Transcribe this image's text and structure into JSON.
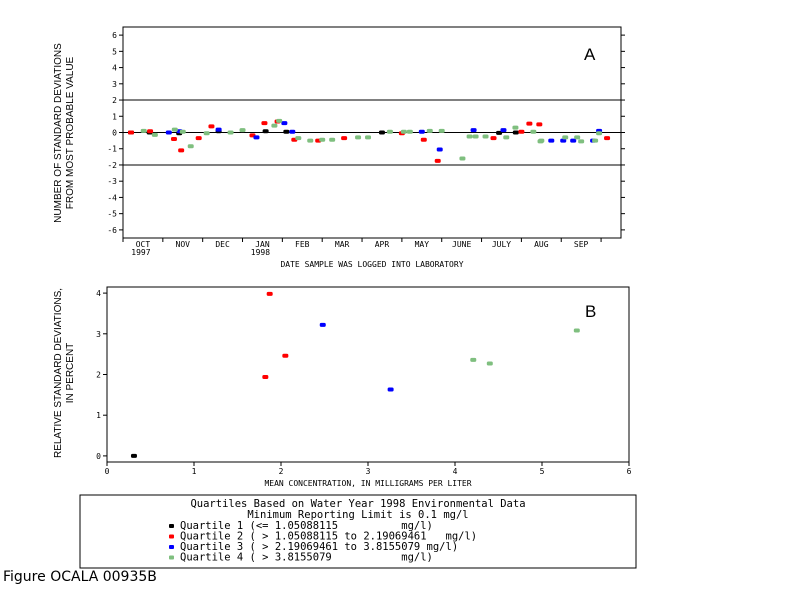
{
  "caption": "Figure OCALA 00935B",
  "colors": {
    "q1": "#000000",
    "q2": "#ff0000",
    "q3": "#0000ff",
    "q4": "#7fbf7f"
  },
  "legend": {
    "title1": "Quartiles Based on Water Year 1998 Environmental Data",
    "title2": "Minimum Reporting Limit is 0.1 mg/l",
    "items": [
      {
        "key": "q1",
        "label": "Quartile 1 (<= 1.05088115          mg/l)"
      },
      {
        "key": "q2",
        "label": "Quartile 2 ( > 1.05088115 to 2.19069461   mg/l)"
      },
      {
        "key": "q3",
        "label": "Quartile 3 ( > 2.19069461 to 3.8155079 mg/l)"
      },
      {
        "key": "q4",
        "label": "Quartile 4 ( > 3.8155079           mg/l)"
      }
    ]
  },
  "chart_data": [
    {
      "type": "scatter",
      "panel": "A",
      "ylabel": [
        "NUMBER OF STANDARD DEVIATIONS",
        "FROM MOST PROBABLE VALUE"
      ],
      "xlabel": "DATE SAMPLE WAS LOGGED INTO LABORATORY",
      "ylim": [
        -6.5,
        6.5
      ],
      "xlim": [
        -0.5,
        12.0
      ],
      "yticks": [
        -6,
        -5,
        -4,
        -3,
        -2,
        -1,
        0,
        1,
        2,
        3,
        4,
        5,
        6
      ],
      "yticklabels": [
        "-6",
        "-5",
        "-4",
        "-3",
        "-2",
        "-1",
        "0",
        "1",
        "2",
        "3",
        "4",
        "5",
        "6"
      ],
      "reference_lines": [
        2,
        0,
        -2
      ],
      "months": [
        {
          "label": "OCT",
          "year": "1997"
        },
        {
          "label": "NOV",
          "year": ""
        },
        {
          "label": "DEC",
          "year": ""
        },
        {
          "label": "JAN",
          "year": "1998"
        },
        {
          "label": "FEB",
          "year": ""
        },
        {
          "label": "MAR",
          "year": ""
        },
        {
          "label": "APR",
          "year": ""
        },
        {
          "label": "MAY",
          "year": ""
        },
        {
          "label": "JUNE",
          "year": ""
        },
        {
          "label": "JULY",
          "year": ""
        },
        {
          "label": "AUG",
          "year": ""
        },
        {
          "label": "SEP",
          "year": ""
        }
      ],
      "series": [
        {
          "key": "q1",
          "points": [
            [
              -0.3,
              0.0
            ],
            [
              0.17,
              0.0
            ],
            [
              0.91,
              -0.05
            ],
            [
              1.9,
              0.08
            ],
            [
              3.08,
              0.08
            ],
            [
              3.6,
              0.05
            ],
            [
              6.0,
              0.0
            ],
            [
              8.94,
              -0.02
            ],
            [
              9.36,
              0.0
            ]
          ]
        },
        {
          "key": "q2",
          "points": [
            [
              -0.3,
              0.0
            ],
            [
              0.18,
              0.08
            ],
            [
              0.78,
              -0.4
            ],
            [
              0.96,
              -1.1
            ],
            [
              1.4,
              -0.35
            ],
            [
              1.72,
              0.38
            ],
            [
              2.75,
              -0.18
            ],
            [
              3.05,
              0.58
            ],
            [
              3.38,
              0.68
            ],
            [
              3.8,
              -0.45
            ],
            [
              4.4,
              -0.5
            ],
            [
              5.05,
              -0.35
            ],
            [
              6.5,
              -0.05
            ],
            [
              7.05,
              -0.45
            ],
            [
              7.4,
              -1.75
            ],
            [
              8.8,
              -0.35
            ],
            [
              9.5,
              0.05
            ],
            [
              9.7,
              0.55
            ],
            [
              9.95,
              0.5
            ],
            [
              11.65,
              -0.35
            ]
          ]
        },
        {
          "key": "q3",
          "points": [
            [
              0.65,
              0.0
            ],
            [
              0.92,
              0.08
            ],
            [
              1.9,
              0.18
            ],
            [
              2.85,
              -0.3
            ],
            [
              3.55,
              0.58
            ],
            [
              3.75,
              0.05
            ],
            [
              7.0,
              0.05
            ],
            [
              7.45,
              -1.05
            ],
            [
              8.3,
              0.15
            ],
            [
              9.05,
              0.15
            ],
            [
              10.25,
              -0.5
            ],
            [
              10.55,
              -0.5
            ],
            [
              10.8,
              -0.5
            ],
            [
              11.3,
              -0.5
            ],
            [
              11.45,
              0.1
            ]
          ]
        },
        {
          "key": "q4",
          "points": [
            [
              0.02,
              0.1
            ],
            [
              0.3,
              -0.15
            ],
            [
              0.8,
              0.18
            ],
            [
              1.0,
              0.05
            ],
            [
              1.2,
              -0.85
            ],
            [
              1.6,
              -0.05
            ],
            [
              2.2,
              0.0
            ],
            [
              2.5,
              0.15
            ],
            [
              3.3,
              0.42
            ],
            [
              3.42,
              0.72
            ],
            [
              3.9,
              -0.35
            ],
            [
              4.2,
              -0.5
            ],
            [
              4.5,
              -0.45
            ],
            [
              4.75,
              -0.45
            ],
            [
              5.4,
              -0.3
            ],
            [
              5.65,
              -0.3
            ],
            [
              6.2,
              0.05
            ],
            [
              6.55,
              0.05
            ],
            [
              6.7,
              0.05
            ],
            [
              7.2,
              0.1
            ],
            [
              7.5,
              0.1
            ],
            [
              8.02,
              -1.6
            ],
            [
              8.2,
              -0.25
            ],
            [
              8.35,
              -0.25
            ],
            [
              8.6,
              -0.25
            ],
            [
              9.12,
              -0.3
            ],
            [
              9.35,
              0.3
            ],
            [
              9.8,
              0.05
            ],
            [
              9.98,
              -0.55
            ],
            [
              10.0,
              -0.5
            ],
            [
              10.6,
              -0.3
            ],
            [
              10.9,
              -0.3
            ],
            [
              11.0,
              -0.55
            ],
            [
              11.35,
              -0.5
            ],
            [
              11.45,
              -0.05
            ]
          ]
        }
      ]
    },
    {
      "type": "scatter",
      "panel": "B",
      "ylabel": [
        "RELATIVE STANDARD DEVIATIONS,",
        "IN PERCENT"
      ],
      "xlabel": "MEAN CONCENTRATION, IN MILLIGRAMS PER LITER",
      "xlim": [
        0,
        6
      ],
      "ylim": [
        -0.15,
        4.15
      ],
      "xticks": [
        0,
        1,
        2,
        3,
        4,
        5,
        6
      ],
      "xticklabels": [
        "0",
        "1",
        "2",
        "3",
        "4",
        "5",
        "6"
      ],
      "yticks": [
        0,
        1,
        2,
        3,
        4
      ],
      "yticklabels": [
        "0",
        "1",
        "2",
        "3",
        "4"
      ],
      "series": [
        {
          "key": "q1",
          "points": [
            [
              0.31,
              0.0
            ]
          ]
        },
        {
          "key": "q2",
          "points": [
            [
              1.82,
              1.94
            ],
            [
              1.87,
              3.98
            ],
            [
              2.05,
              2.46
            ]
          ]
        },
        {
          "key": "q3",
          "points": [
            [
              2.48,
              3.22
            ],
            [
              3.26,
              1.63
            ]
          ]
        },
        {
          "key": "q4",
          "points": [
            [
              4.21,
              2.36
            ],
            [
              4.4,
              2.27
            ],
            [
              5.4,
              3.08
            ]
          ]
        }
      ]
    }
  ]
}
